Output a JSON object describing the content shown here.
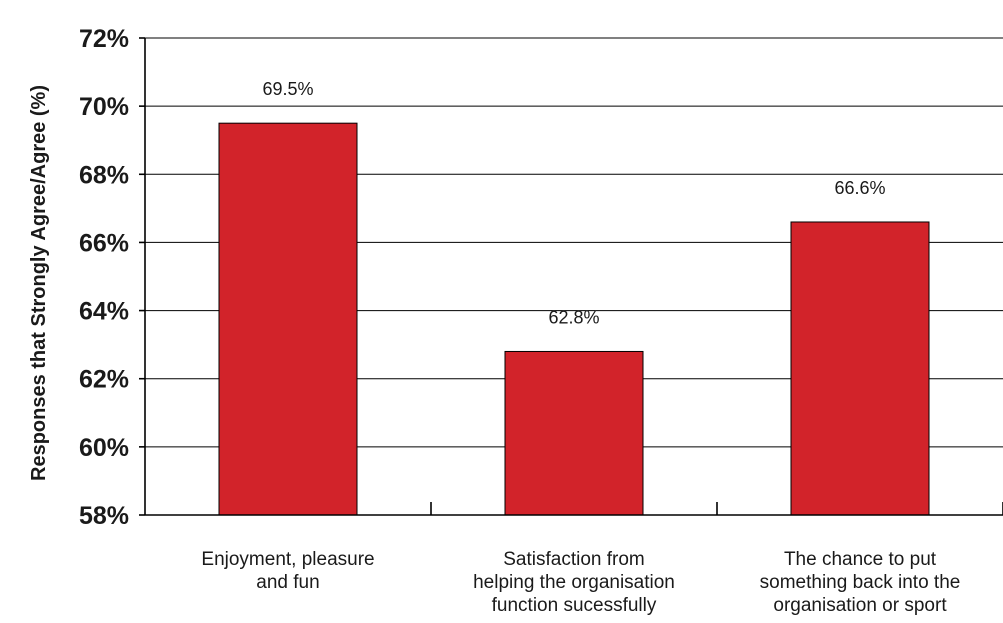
{
  "chart_data": {
    "type": "bar",
    "categories": [
      [
        "Enjoyment, pleasure",
        "and fun"
      ],
      [
        "Satisfaction from",
        "helping the organisation",
        "function sucessfully"
      ],
      [
        "The chance to put",
        "something back into the",
        "organisation or sport"
      ]
    ],
    "values": [
      69.5,
      62.8,
      66.6
    ],
    "data_labels": [
      "69.5%",
      "62.8%",
      "66.6%"
    ],
    "title": "",
    "xlabel": "",
    "ylabel": "Responses that Strongly Agree/Agree (%)",
    "ylim": [
      58,
      72
    ],
    "yticks": [
      {
        "value": 58,
        "label": "58%"
      },
      {
        "value": 60,
        "label": "60%"
      },
      {
        "value": 62,
        "label": "62%"
      },
      {
        "value": 64,
        "label": "64%"
      },
      {
        "value": 66,
        "label": "66%"
      },
      {
        "value": 68,
        "label": "68%"
      },
      {
        "value": 70,
        "label": "70%"
      },
      {
        "value": 72,
        "label": "72%"
      }
    ],
    "grid": true,
    "legend": "none",
    "bar_color": "#d2232a"
  }
}
